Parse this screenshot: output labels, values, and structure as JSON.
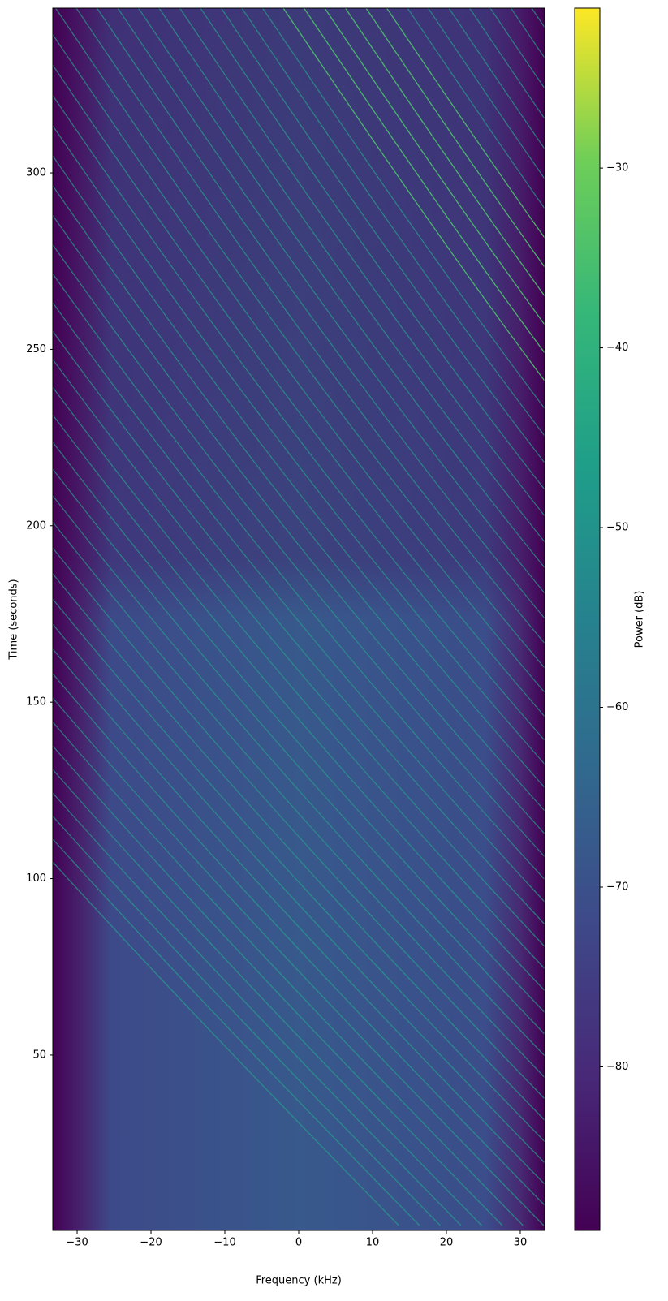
{
  "chart_data": {
    "type": "spectrogram",
    "xlabel": "Frequency (kHz)",
    "ylabel": "Time (seconds)",
    "xlim": [
      -33.3,
      33.3
    ],
    "xticks": [
      {
        "value": -30,
        "label": "−30"
      },
      {
        "value": -20,
        "label": "−20"
      },
      {
        "value": -10,
        "label": "−10"
      },
      0,
      10,
      20,
      30
    ],
    "ylim": [
      0.3,
      346.7
    ],
    "yticks": [
      50,
      100,
      150,
      200,
      250,
      300
    ],
    "colorbar": {
      "label": "Power (dB)",
      "lim": [
        -89.1,
        -21.1
      ],
      "ticks": [
        {
          "value": -30,
          "label": "−30"
        },
        {
          "value": -40,
          "label": "−40"
        },
        {
          "value": -50,
          "label": "−50"
        },
        {
          "value": -60,
          "label": "−60"
        },
        {
          "value": -70,
          "label": "−70"
        },
        {
          "value": -80,
          "label": "−80"
        }
      ]
    }
  }
}
